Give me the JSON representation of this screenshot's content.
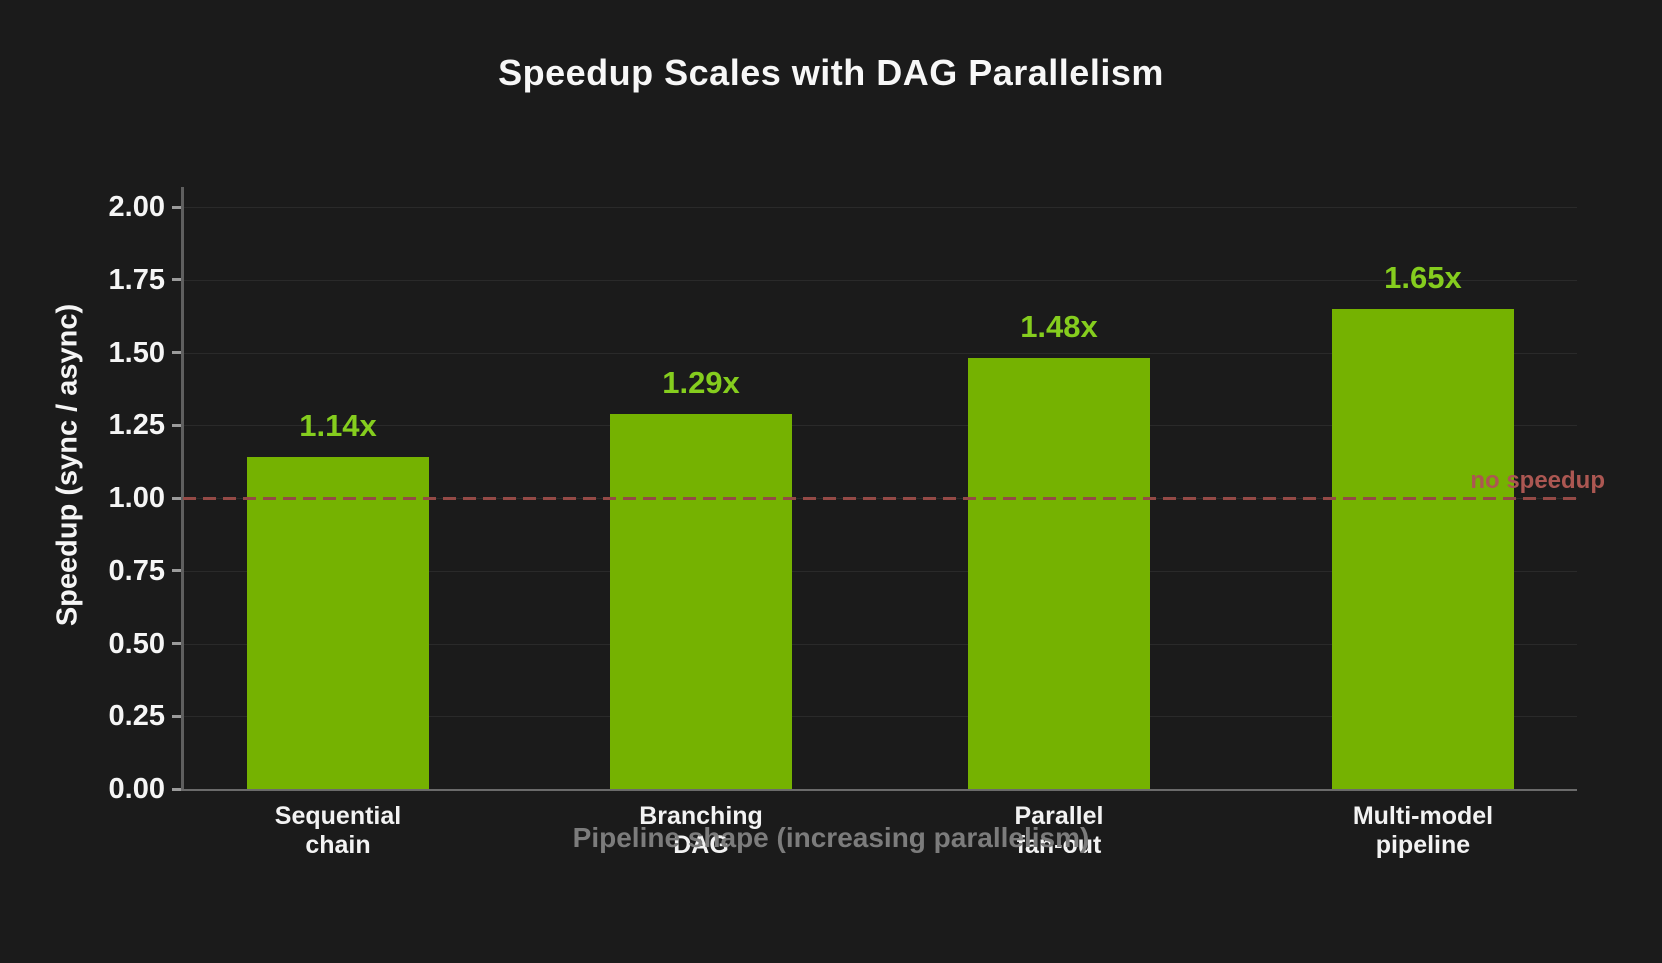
{
  "chart_data": {
    "type": "bar",
    "title": "Speedup Scales with DAG Parallelism",
    "xlabel": "Pipeline shape (increasing parallelism)",
    "ylabel": "Speedup (sync / async)",
    "categories": [
      "Sequential\nchain",
      "Branching\nDAG",
      "Parallel\nfan-out",
      "Multi-model\npipeline"
    ],
    "values": [
      1.14,
      1.29,
      1.48,
      1.65
    ],
    "data_labels": [
      "1.14x",
      "1.29x",
      "1.48x",
      "1.65x"
    ],
    "yticks": [
      "2.00",
      "1.75",
      "1.50",
      "1.25",
      "1.00",
      "0.75",
      "0.50",
      "0.25",
      "0.00"
    ],
    "ylim": [
      0,
      2.07
    ],
    "grid": true,
    "legend": "none",
    "background": "#1b1b1b",
    "bar_color": "#75b201",
    "bar_label_color": "#85cd1e",
    "reference_line": {
      "value": 1.0,
      "style": "dashed",
      "label": "no speedup",
      "color": "#944a46",
      "label_color": "#ac5752"
    }
  }
}
